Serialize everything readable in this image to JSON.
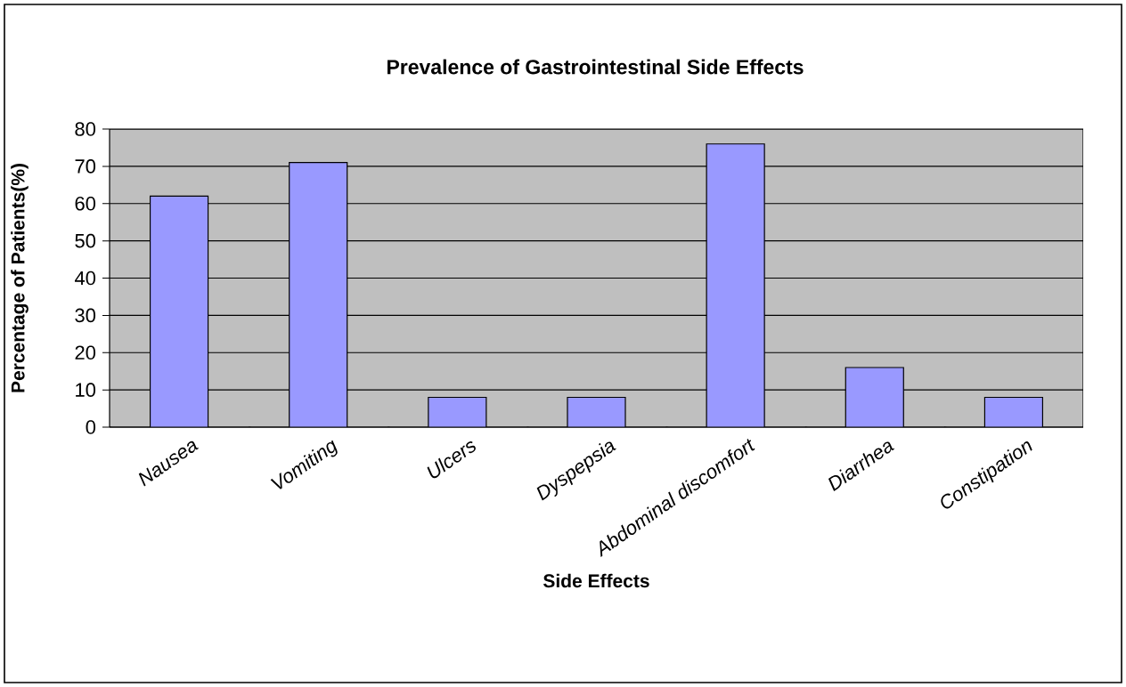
{
  "chart_data": {
    "type": "bar",
    "title": "Prevalence of Gastrointestinal Side Effects",
    "xlabel": "Side Effects",
    "ylabel": "Percentage of Patients(%)",
    "categories": [
      "Nausea",
      "Vomiting",
      "Ulcers",
      "Dyspepsia",
      "Abdominal discomfort",
      "Diarrhea",
      "Constipation"
    ],
    "values": [
      62,
      71,
      8,
      8,
      76,
      16,
      8
    ],
    "color": "#9999ff",
    "ylim": [
      0,
      80
    ],
    "yticks": [
      0,
      10,
      20,
      30,
      40,
      50,
      60,
      70,
      80
    ],
    "grid": "y"
  }
}
